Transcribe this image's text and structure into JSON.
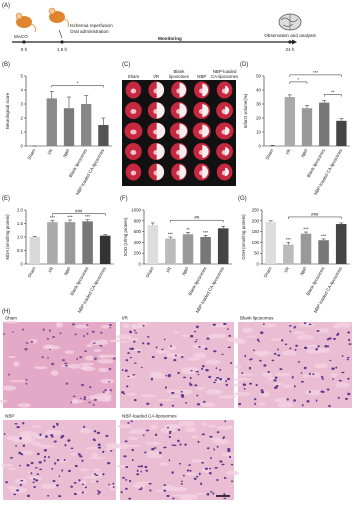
{
  "panel_a": {
    "label": "(A)",
    "start": "MACO",
    "t0": "0 h",
    "event_1": "Ischemia reperfusion",
    "event_2": "Oral administration",
    "t1": "1.5 h",
    "phase": "Monitoring",
    "end": "Observation and analysis",
    "t2": "24 h"
  },
  "panel_c": {
    "label": "(C)",
    "columns": [
      [
        "Sham"
      ],
      [
        "I/R"
      ],
      [
        "Blank",
        "liposomes"
      ],
      [
        "NBP"
      ],
      [
        "NBP-loaded",
        "CA-liposomes"
      ]
    ]
  },
  "panel_h": {
    "label": "(H)",
    "images": [
      "Sham",
      "I/R",
      "Blank liposomes",
      "NBP",
      "NBP-loaded CA-liposomes"
    ]
  },
  "chart_data": [
    {
      "type": "bar",
      "label": "(B)",
      "ylabel": "Neurological score",
      "categories": [
        "Sham",
        "I/R",
        "NBP",
        "Blank liposomes",
        "NBP-loaded CA-liposomes"
      ],
      "values": [
        0,
        3.4,
        2.7,
        3.0,
        1.5
      ],
      "errors": [
        0,
        0.5,
        0.8,
        0.6,
        0.5
      ],
      "colors": [
        "#9a9a9a",
        "#8a8a8a",
        "#7a7a7a",
        "#888888",
        "#555555"
      ],
      "ylim": [
        0,
        5
      ],
      "yticks": [
        0,
        1,
        2,
        3,
        4,
        5
      ],
      "brackets": [
        {
          "from": 1,
          "to": 4,
          "label": "*"
        }
      ]
    },
    {
      "type": "bar",
      "label": "(D)",
      "ylabel": "Infarct volume(%)",
      "categories": [
        "Sham",
        "I/R",
        "NBP",
        "Blank liposomes",
        "NBP-loaded CA-liposomes"
      ],
      "values": [
        0,
        35,
        27,
        31,
        18
      ],
      "errors": [
        0.5,
        1.5,
        2,
        1.5,
        1.5
      ],
      "colors": [
        "#bbbbbb",
        "#aaaaaa",
        "#999999",
        "#777777",
        "#444444"
      ],
      "ylim": [
        0,
        50
      ],
      "yticks": [
        0,
        10,
        20,
        30,
        40,
        50
      ],
      "brackets": [
        {
          "from": 1,
          "to": 4,
          "label": "***"
        },
        {
          "from": 1,
          "to": 2,
          "label": "*"
        },
        {
          "from": 3,
          "to": 4,
          "label": "**"
        }
      ]
    },
    {
      "type": "bar",
      "label": "(E)",
      "ylabel": "MDA (nmol/mg protein)",
      "categories": [
        "Sham",
        "I/R",
        "NBP",
        "Blank liposomes",
        "NBP-loaded CA-liposomes"
      ],
      "values": [
        1.0,
        1.55,
        1.55,
        1.58,
        1.05
      ],
      "errors": [
        0.02,
        0.06,
        0.08,
        0.06,
        0.04
      ],
      "colors": [
        "#d9d9d9",
        "#aaaaaa",
        "#999999",
        "#777777",
        "#333333"
      ],
      "ylim": [
        0,
        2
      ],
      "yticks": [
        0,
        0.5,
        {
          "value": 1,
          "label": "1.0"
        },
        1.5,
        {
          "value": 2,
          "label": "2.0"
        }
      ],
      "significance": [
        null,
        "***",
        "***",
        "***",
        null
      ],
      "brackets": [
        {
          "from": 1,
          "to": 4,
          "label": "###"
        }
      ]
    },
    {
      "type": "bar",
      "label": "(F)",
      "ylabel": "SOD (U/mg protein)",
      "categories": [
        "Sham",
        "I/R",
        "NBP",
        "Blank liposomes",
        "NBP-loaded CA-liposomes"
      ],
      "values": [
        720,
        470,
        550,
        500,
        660
      ],
      "errors": [
        40,
        30,
        35,
        30,
        40
      ],
      "colors": [
        "#dddddd",
        "#bbbbbb",
        "#999999",
        "#777777",
        "#444444"
      ],
      "ylim": [
        0,
        1000
      ],
      "yticks": [
        0,
        200,
        400,
        600,
        800,
        1000
      ],
      "significance": [
        null,
        "***",
        "**",
        "***",
        null
      ],
      "brackets": [
        {
          "from": 1,
          "to": 4,
          "label": "##"
        }
      ]
    },
    {
      "type": "bar",
      "label": "(G)",
      "ylabel": "GSH (nmol/mg protein)",
      "categories": [
        "Sham",
        "I/R",
        "NBP",
        "Blank liposomes",
        "NBP-loaded CA-liposomes"
      ],
      "values": [
        195,
        90,
        140,
        110,
        185
      ],
      "errors": [
        5,
        10,
        8,
        6,
        5
      ],
      "colors": [
        "#dddddd",
        "#bbbbbb",
        "#999999",
        "#777777",
        "#444444"
      ],
      "ylim": [
        0,
        250
      ],
      "yticks": [
        0,
        50,
        100,
        150,
        200,
        250
      ],
      "significance": [
        null,
        "***",
        "***",
        "***",
        null
      ],
      "brackets": [
        {
          "from": 1,
          "to": 4,
          "label": "###"
        }
      ]
    }
  ]
}
